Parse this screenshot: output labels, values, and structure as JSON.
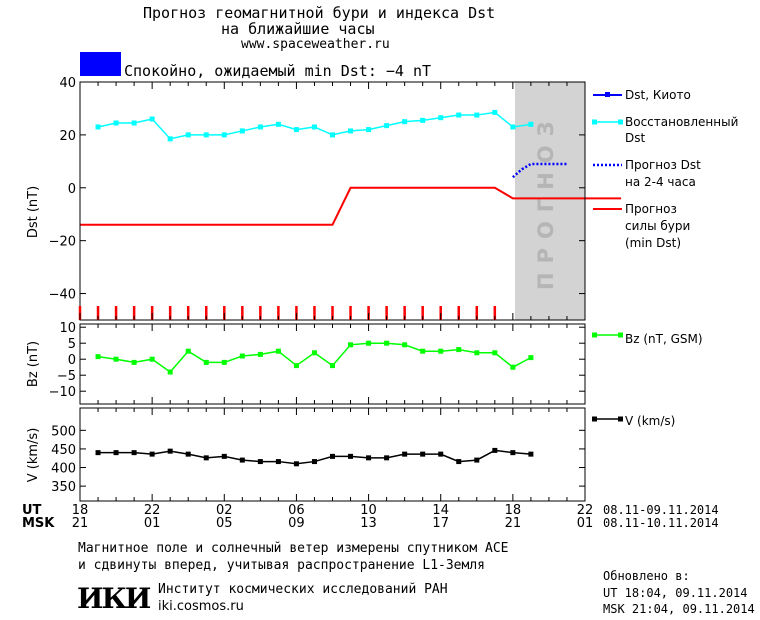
{
  "header": {
    "title_line1": "Прогноз геомагнитной бури и индекса Dst",
    "title_line2": "на ближайшие часы",
    "url": "www.spaceweather.ru",
    "status_text": "Спокойно, ожидаемый min Dst: −4 nT",
    "status_color": "#0000ff"
  },
  "chart_data": [
    {
      "type": "line",
      "ylabel": "Dst (nT)",
      "ylim": [
        -50,
        40
      ],
      "yticks": [
        40,
        20,
        0,
        -20,
        -40
      ],
      "forecast_band_label": "ПРОГНОЗ",
      "series": [
        {
          "name": "Dst, Киото",
          "color": "#0000ff",
          "x": [],
          "y": []
        },
        {
          "name": "Восстановленный Dst",
          "color": "#00ffff",
          "x": [
            19,
            20,
            21,
            22,
            23,
            24,
            25,
            26,
            27,
            28,
            29,
            30,
            31,
            32,
            33,
            34,
            35,
            36,
            37,
            38,
            39,
            40,
            41,
            42,
            43,
            44,
            45
          ],
          "y": [
            23,
            24.5,
            24.5,
            26,
            18.5,
            20,
            20,
            20,
            21.5,
            23,
            24,
            22,
            23,
            20,
            21.5,
            22,
            23.5,
            25,
            25.5,
            26.5,
            27.5,
            27.5,
            28.5,
            23,
            24,
            null,
            null
          ]
        },
        {
          "name": "Прогноз Dst на 2-4 часа",
          "color": "#0000ff",
          "x": [
            42,
            42.5,
            43,
            44,
            45
          ],
          "y": [
            4,
            7,
            9,
            9,
            9
          ]
        },
        {
          "name": "Прогноз силы бури (min Dst)",
          "color": "#ff0000",
          "x": [
            18,
            32,
            33,
            34,
            41,
            42,
            48
          ],
          "y": [
            -14,
            -14,
            0,
            0,
            0,
            -4,
            -4
          ]
        }
      ],
      "legend": [
        {
          "label_line1": "Dst, Киото",
          "label_line2": "",
          "label_line3": ""
        },
        {
          "label_line1": "Восстановленный",
          "label_line2": "Dst",
          "label_line3": ""
        },
        {
          "label_line1": "Прогноз Dst",
          "label_line2": "на 2-4 часа",
          "label_line3": ""
        },
        {
          "label_line1": "Прогноз",
          "label_line2": "силы бури",
          "label_line3": "(min Dst)"
        }
      ]
    },
    {
      "type": "line",
      "ylabel": "Bz (nT)",
      "ylim": [
        -14,
        11
      ],
      "yticks": [
        10,
        5,
        0,
        -5,
        -10
      ],
      "series": [
        {
          "name": "Bz (nT, GSM)",
          "color": "#00ff00",
          "x": [
            19,
            20,
            21,
            22,
            23,
            24,
            25,
            26,
            27,
            28,
            29,
            30,
            31,
            32,
            33,
            34,
            35,
            36,
            37,
            38,
            39,
            40,
            41,
            42,
            43
          ],
          "y": [
            0.8,
            0,
            -1,
            0,
            -4,
            2.5,
            -1,
            -1,
            1,
            1.5,
            2.5,
            -2,
            2,
            -2,
            4.5,
            5,
            5,
            4.5,
            2.5,
            2.5,
            3,
            2,
            2,
            -2.5,
            0.5
          ]
        }
      ]
    },
    {
      "type": "line",
      "ylabel": "V (km/s)",
      "ylim": [
        310,
        560
      ],
      "yticks": [
        500,
        450,
        400,
        350
      ],
      "series": [
        {
          "name": "V (km/s)",
          "color": "#000000",
          "x": [
            19,
            20,
            21,
            22,
            23,
            24,
            25,
            26,
            27,
            28,
            29,
            30,
            31,
            32,
            33,
            34,
            35,
            36,
            37,
            38,
            39,
            40,
            41,
            42,
            43
          ],
          "y": [
            440,
            440,
            440,
            436,
            444,
            436,
            426,
            430,
            420,
            416,
            416,
            410,
            416,
            430,
            430,
            426,
            426,
            436,
            436,
            436,
            416,
            420,
            446,
            440,
            436
          ]
        }
      ]
    }
  ],
  "x_axis": {
    "row_ut_label": "UT",
    "row_msk_label": "MSK",
    "ut_ticks": [
      "18",
      "22",
      "02",
      "06",
      "10",
      "14",
      "18",
      "22"
    ],
    "msk_ticks": [
      "21",
      "01",
      "05",
      "09",
      "13",
      "17",
      "21",
      "01"
    ],
    "ut_range": "08.11-09.11.2014",
    "msk_range": "08.11-10.11.2014"
  },
  "footer": {
    "note_line1": "Магнитное поле и солнечный ветер измерены спутником ACE",
    "note_line2": "и сдвинуты вперед, учитывая распространение L1-Земля",
    "updated_label": "Обновлено в:",
    "updated_ut": "UT  18:04, 09.11.2014",
    "updated_msk": "MSK 21:04, 09.11.2014",
    "logo_text": "ИКИ",
    "institute_name": "Институт космических исследований РАН",
    "institute_url": "iki.cosmos.ru"
  }
}
